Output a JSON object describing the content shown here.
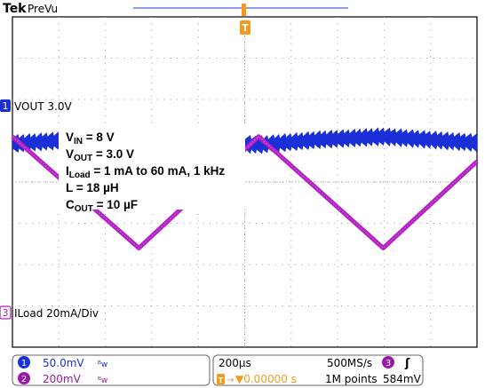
{
  "header": {
    "brand": "Tek",
    "mode": "PreVu",
    "trigger_marker": "T"
  },
  "channels": [
    {
      "num": "1",
      "label": "VOUT 3.0V",
      "color": "#1a2fd6"
    },
    {
      "num": "3",
      "label": "ILoad 20mA/Div",
      "color": "#b020c0"
    }
  ],
  "annotations": [
    {
      "main": "V",
      "sub": "IN",
      "rest": " = 8 V"
    },
    {
      "main": "V",
      "sub": "OUT",
      "rest": " = 3.0 V"
    },
    {
      "main": "I",
      "sub": "Load",
      "rest": " = 1 mA to 60 mA, 1 kHz"
    },
    {
      "main": "L = 18 µH",
      "sub": "",
      "rest": ""
    },
    {
      "main": "C",
      "sub": "OUT",
      "rest": " = 10 µF"
    }
  ],
  "readout": {
    "ch1": {
      "num": "1",
      "scale": "50.0mV",
      "coupling": "ᴮw"
    },
    "ch2": {
      "num": "2",
      "scale": "200mV",
      "coupling": "ᴮw"
    },
    "timebase": "200µs",
    "sample_rate": "500MS/s",
    "trig_offset": "▼0.00000 s",
    "record_length": "1M points",
    "trig_source": "3",
    "trig_slope": "ʃ",
    "trig_level": "584mV"
  },
  "chart_data": {
    "type": "line",
    "grid": true,
    "x_divisions": 10,
    "y_divisions": 8,
    "series": [
      {
        "name": "VOUT 3.0V",
        "x": [
          0,
          1.3,
          2.65,
          4.0,
          5.3,
          6.6,
          8.0,
          9.3,
          10
        ],
        "values": [
          0.25,
          0.45,
          0.6,
          0.4,
          0.2,
          0.45,
          0.6,
          0.4,
          0.3
        ]
      },
      {
        "name": "ILoad 20mA/Div",
        "x": [
          0,
          2.72,
          5.3,
          7.98,
          10
        ],
        "values": [
          0,
          -2.7,
          0,
          -2.7,
          -0.6
        ]
      }
    ]
  }
}
